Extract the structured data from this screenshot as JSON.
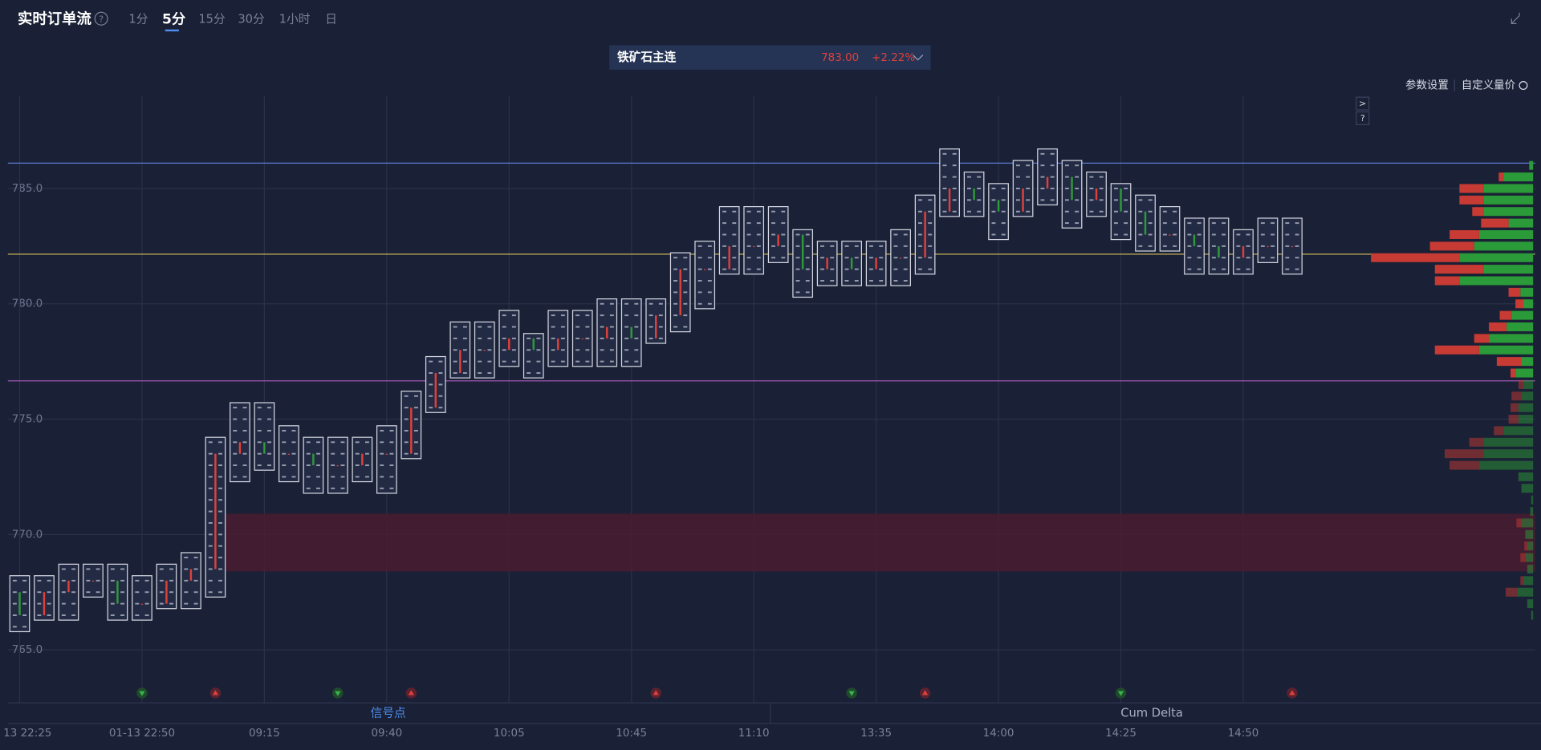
{
  "header": {
    "title": "实时订单流",
    "tabs": [
      "1分",
      "5分",
      "15分",
      "30分",
      "1小时",
      "日"
    ],
    "active_tab": 1
  },
  "selector": {
    "name": "铁矿石主连",
    "price": "783.00",
    "change": "+2.22%"
  },
  "toolbar": {
    "settings": "参数设置",
    "custom": "自定义量价"
  },
  "bottom_tabs": [
    "信号点",
    "Cum Delta"
  ],
  "chart_data": {
    "type": "footprint",
    "categories": [
      "13 22:25",
      null,
      null,
      null,
      null,
      "01-13 22:50",
      null,
      null,
      null,
      null,
      "09:15",
      null,
      null,
      null,
      null,
      "09:40",
      null,
      null,
      null,
      null,
      "10:05",
      null,
      null,
      null,
      null,
      "10:45",
      null,
      null,
      null,
      null,
      "11:10",
      null,
      null,
      null,
      null,
      "13:35",
      null,
      null,
      null,
      null,
      "14:00",
      null,
      null,
      null,
      null,
      "14:25",
      null,
      null,
      null,
      null,
      "14:50",
      null,
      null
    ],
    "high": [
      768.0,
      768.0,
      768.5,
      768.5,
      768.5,
      768.0,
      768.5,
      769.0,
      774.0,
      775.5,
      775.5,
      774.5,
      774.0,
      774.0,
      774.0,
      774.5,
      776.0,
      777.5,
      779.0,
      779.0,
      779.5,
      778.5,
      779.5,
      779.5,
      780.0,
      780.0,
      780.0,
      782.0,
      782.5,
      784.0,
      784.0,
      784.0,
      783.0,
      782.5,
      782.5,
      782.5,
      783.0,
      784.5,
      786.5,
      785.5,
      785.0,
      786.0,
      786.5,
      786.0,
      785.5,
      785.0,
      784.5,
      784.0,
      783.5,
      783.5,
      783.0,
      783.5,
      783.5
    ],
    "low": [
      766.0,
      766.5,
      766.5,
      767.5,
      766.5,
      766.5,
      767.0,
      767.0,
      767.5,
      772.5,
      773.0,
      772.5,
      772.0,
      772.0,
      772.5,
      772.0,
      773.5,
      775.5,
      777.0,
      777.0,
      777.5,
      777.0,
      777.5,
      777.5,
      777.5,
      777.5,
      778.5,
      779.0,
      780.0,
      781.5,
      781.5,
      782.0,
      780.5,
      781.0,
      781.0,
      781.0,
      781.0,
      781.5,
      784.0,
      784.0,
      783.0,
      784.0,
      784.5,
      783.5,
      784.0,
      783.0,
      782.5,
      782.5,
      781.5,
      781.5,
      781.5,
      782.0,
      781.5
    ],
    "open": [
      767.5,
      766.5,
      767.5,
      768.0,
      768.0,
      767.0,
      767.0,
      768.0,
      768.5,
      773.5,
      774.0,
      773.5,
      773.5,
      773.0,
      773.0,
      773.5,
      773.5,
      775.5,
      777.0,
      778.0,
      778.0,
      778.5,
      778.0,
      778.5,
      778.5,
      779.0,
      778.5,
      779.5,
      781.5,
      781.5,
      782.5,
      782.5,
      783.0,
      781.5,
      782.0,
      781.5,
      782.0,
      782.0,
      784.0,
      785.0,
      784.5,
      784.0,
      785.0,
      785.5,
      784.5,
      785.0,
      784.0,
      783.0,
      783.0,
      782.5,
      782.0,
      782.5,
      782.5
    ],
    "close": [
      766.5,
      767.5,
      768.0,
      768.0,
      767.0,
      767.0,
      768.0,
      768.5,
      773.5,
      774.0,
      773.5,
      773.5,
      773.0,
      773.0,
      773.5,
      773.5,
      775.5,
      777.0,
      778.0,
      778.0,
      778.5,
      778.0,
      778.5,
      778.5,
      779.0,
      778.5,
      779.5,
      781.5,
      781.5,
      782.5,
      782.5,
      783.0,
      781.5,
      782.0,
      781.5,
      782.0,
      782.0,
      784.0,
      785.0,
      784.5,
      784.0,
      785.0,
      785.5,
      784.5,
      785.0,
      784.0,
      783.0,
      783.0,
      782.5,
      782.0,
      782.5,
      782.5,
      782.5
    ],
    "signals": [
      null,
      null,
      null,
      null,
      null,
      "sell",
      null,
      null,
      "buy",
      null,
      null,
      null,
      null,
      "sell",
      null,
      null,
      "buy",
      null,
      null,
      null,
      null,
      null,
      null,
      null,
      null,
      null,
      "buy",
      null,
      null,
      null,
      null,
      null,
      null,
      null,
      "sell",
      null,
      null,
      "buy",
      null,
      null,
      null,
      null,
      null,
      null,
      null,
      "sell",
      null,
      null,
      null,
      null,
      null,
      null,
      "buy"
    ],
    "up_color": "#e0403a",
    "down_color": "#2f9a3a",
    "ylim": [
      762.7,
      789.0
    ],
    "yticks": [
      {
        "value": 765,
        "label": "765.0"
      },
      {
        "value": 770,
        "label": "770.0"
      },
      {
        "value": 775,
        "label": "775.0"
      },
      {
        "value": 780,
        "label": "780.0"
      },
      {
        "value": 785,
        "label": "785.0"
      }
    ],
    "grid": true,
    "levels": [
      {
        "value": 786.1,
        "color": "#5b7bd5"
      },
      {
        "value": 782.15,
        "color": "#c9b458"
      },
      {
        "value": 776.66,
        "color": "#b05bc0"
      }
    ],
    "zone": {
      "low": 768.4,
      "high": 770.9,
      "color": "#4a1c2f"
    },
    "profile": {
      "prices": [
        786.0,
        785.5,
        785.0,
        784.5,
        784.0,
        783.5,
        783.0,
        782.5,
        782.0,
        781.5,
        781.0,
        780.5,
        780.0,
        779.5,
        779.0,
        778.5,
        778.0,
        777.5,
        777.0,
        776.5,
        776.0,
        775.5,
        775.0,
        774.5,
        774.0,
        773.5,
        773.0,
        772.5,
        772.0,
        771.5,
        771.0,
        770.5,
        770.0,
        769.5,
        769.0,
        768.5,
        768.0,
        767.5,
        767.0,
        766.5
      ],
      "sell": [
        0,
        5,
        25,
        25,
        12,
        28,
        30,
        45,
        90,
        50,
        25,
        12,
        8,
        12,
        18,
        15,
        45,
        25,
        5,
        5,
        10,
        8,
        10,
        10,
        15,
        40,
        30,
        0,
        0,
        0,
        0,
        5,
        0,
        3,
        5,
        0,
        3,
        12,
        0,
        0
      ],
      "buy": [
        4,
        30,
        50,
        50,
        50,
        25,
        55,
        60,
        75,
        50,
        75,
        13,
        10,
        22,
        27,
        45,
        55,
        12,
        18,
        10,
        12,
        15,
        15,
        30,
        50,
        50,
        55,
        15,
        12,
        2,
        3,
        12,
        8,
        6,
        8,
        6,
        10,
        16,
        6,
        2
      ],
      "sell_color": "#c83a34",
      "buy_color": "#2b9a38"
    }
  }
}
